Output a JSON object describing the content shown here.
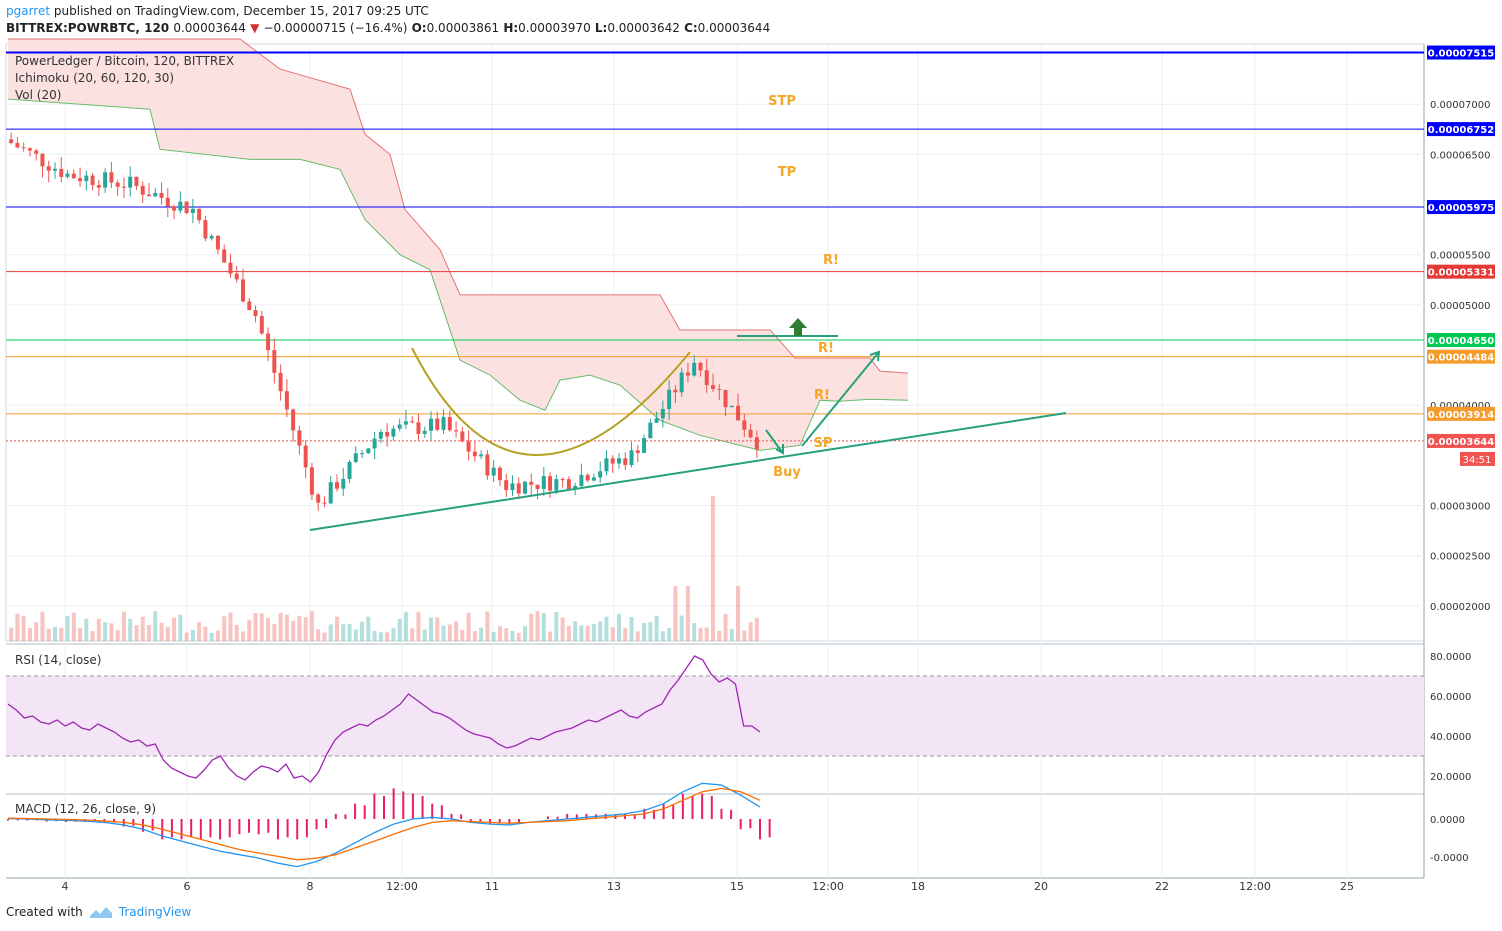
{
  "header": {
    "author": "pgarret",
    "published_text": "published on TradingView.com, December 15, 2017 09:25 UTC",
    "symbol_interval": "BITTREX:POWRBTC, 120",
    "last": "0.00003644",
    "change_arrow": "▼",
    "change": "−0.00000715 (−16.4%)",
    "o_label": "O:",
    "o": "0.00003861",
    "h_label": "H:",
    "h": "0.00003970",
    "l_label": "L:",
    "l": "0.00003642",
    "c_label": "C:",
    "c": "0.00003644"
  },
  "legends": {
    "main": "PowerLedger / Bitcoin, 120, BITTREX",
    "ichimoku": "Ichimoku (20, 60, 120, 30)",
    "vol": "Vol (20)",
    "rsi": "RSI (14, close)",
    "macd": "MACD (12, 26, close, 9)"
  },
  "footer": {
    "created_with": "Created with",
    "brand": "TradingView"
  },
  "colors": {
    "up": "#26a69a",
    "down": "#ef5350",
    "cloud": "#fcdcdc",
    "blue_line": "#0000ff",
    "red_line": "#e53935",
    "green_line": "#00c853",
    "orange_line": "#f59b2a",
    "trend": "#26a17b",
    "annot": "#f5a623",
    "rsi_band": "#f3e5f5",
    "rsi_line": "#9c27b0",
    "macd": "#2196f3",
    "signal": "#ff6d00",
    "hist": "#e91e63"
  },
  "chart_data": [
    {
      "type": "candlestick",
      "title": "PowerLedger / Bitcoin, 120, BITTREX",
      "x_ticks": [
        "4",
        "6",
        "8",
        "12:00",
        "11",
        "13",
        "15",
        "12:00",
        "18",
        "20",
        "22",
        "12:00",
        "25"
      ],
      "y_ticks": [
        "0.00007000",
        "0.00006500",
        "0.00005500",
        "0.00005000",
        "0.00004000",
        "0.00003000",
        "0.00002500",
        "0.00002000"
      ],
      "ylim": [
        1.65e-05,
        7.6e-05
      ],
      "price_series_approx": {
        "x": [
          "Dec 3",
          "Dec 4",
          "Dec 5",
          "Dec 6",
          "Dec 7",
          "Dec 8",
          "Dec 9",
          "Dec 10",
          "Dec 11",
          "Dec 12",
          "Dec 13",
          "Dec 14",
          "Dec 15"
        ],
        "close": [
          6.65e-05,
          6.3e-05,
          6.2e-05,
          5.95e-05,
          4.9e-05,
          3e-05,
          3.75e-05,
          3.8e-05,
          3.2e-05,
          3.25e-05,
          3.5e-05,
          4.45e-05,
          3.644e-05
        ]
      },
      "horizontal_levels": [
        {
          "value": "0.00007515",
          "color": "#0000ff",
          "tag_bg": "#0000ff"
        },
        {
          "value": "0.00006752",
          "color": "#0000ff",
          "tag_bg": "#0000ff"
        },
        {
          "value": "0.00005975",
          "color": "#0000ff",
          "tag_bg": "#0000ff"
        },
        {
          "value": "0.00005331",
          "color": "#e53935",
          "tag_bg": "#e53935"
        },
        {
          "value": "0.00004650",
          "color": "#00c853",
          "tag_bg": "#00c853"
        },
        {
          "value": "0.00004484",
          "color": "#f59b2a",
          "tag_bg": "#f59b2a"
        },
        {
          "value": "0.00003914",
          "color": "#f59b2a",
          "tag_bg": "#f59b2a"
        },
        {
          "value": "0.00003644",
          "color": "#ef5350",
          "tag_bg": "#ef5350"
        }
      ],
      "countdown": "34:51",
      "annotations": [
        "STP",
        "TP",
        "R!",
        "R!",
        "R!",
        "SP",
        "Buy"
      ]
    },
    {
      "type": "line",
      "title": "RSI (14, close)",
      "y_ticks": [
        "80.0000",
        "60.0000",
        "40.0000",
        "20.0000"
      ],
      "ylim": [
        12,
        84
      ],
      "band": [
        30,
        70
      ],
      "values": [
        56,
        53,
        49,
        50,
        47,
        46,
        48,
        45,
        47,
        44,
        43,
        46,
        44,
        42,
        39,
        37,
        38,
        35,
        36,
        28,
        24,
        22,
        20,
        19,
        23,
        28,
        30,
        24,
        20,
        18,
        22,
        25,
        24,
        22,
        26,
        19,
        20,
        17,
        22,
        31,
        38,
        42,
        44,
        46,
        45,
        48,
        50,
        53,
        56,
        61,
        58,
        55,
        52,
        51,
        49,
        46,
        43,
        41,
        40,
        39,
        36,
        34,
        35,
        37,
        39,
        38,
        40,
        42,
        43,
        44,
        46,
        48,
        47,
        49,
        51,
        53,
        50,
        49,
        52,
        54,
        56,
        63,
        68,
        74,
        80,
        78,
        71,
        67,
        69,
        66,
        45,
        45,
        42
      ]
    },
    {
      "type": "line",
      "title": "MACD (12, 26, close, 9)",
      "y_ticks": [
        "0.0000",
        "-0.0000"
      ],
      "series": [
        {
          "values": [
            0.02,
            0.0,
            -0.05,
            -0.08,
            -0.12,
            -0.2,
            -0.35,
            -0.6,
            -1.0,
            -1.3,
            -1.6,
            -1.9,
            -2.1,
            -2.3,
            -2.6,
            -2.8,
            -2.5,
            -2.0,
            -1.4,
            -0.8,
            -0.3,
            0.0,
            0.1,
            0.0,
            -0.2,
            -0.3,
            -0.35,
            -0.2,
            -0.1,
            0.0,
            0.1,
            0.2,
            0.3,
            0.5,
            0.9,
            1.6,
            2.1,
            2.0,
            1.4,
            0.7
          ]
        },
        {
          "values": [
            0.05,
            0.03,
            0.0,
            -0.02,
            -0.06,
            -0.12,
            -0.2,
            -0.35,
            -0.6,
            -0.9,
            -1.2,
            -1.5,
            -1.8,
            -2.0,
            -2.2,
            -2.4,
            -2.3,
            -2.1,
            -1.7,
            -1.3,
            -0.9,
            -0.5,
            -0.2,
            -0.1,
            -0.15,
            -0.2,
            -0.25,
            -0.2,
            -0.15,
            -0.1,
            0.0,
            0.1,
            0.2,
            0.3,
            0.6,
            1.1,
            1.6,
            1.8,
            1.6,
            1.1
          ]
        }
      ]
    }
  ]
}
